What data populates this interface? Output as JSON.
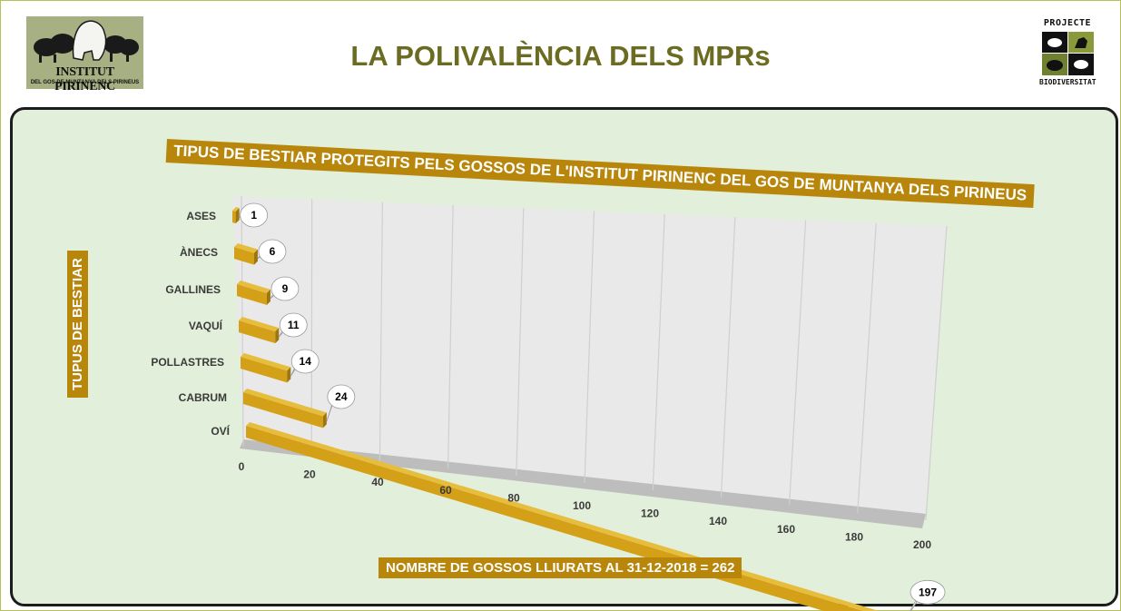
{
  "header": {
    "title": "LA POLIVALÈNCIA DELS MPRs",
    "logo_left": {
      "name": "INSTITUT PIRINENC",
      "tagline": "DEL GOS DE MUNTANYA DELS PIRINEUS"
    },
    "logo_right": {
      "top": "PROJECTE",
      "bottom": "BIODIVERSITAT"
    }
  },
  "colors": {
    "bar": "#d4a017",
    "bar_dark": "#9c7610",
    "banner": "#b8860b",
    "panel": "#e2efda",
    "title": "#6b6b22"
  },
  "chart_data": {
    "type": "bar",
    "orientation": "horizontal",
    "title": "TIPUS DE BESTIAR PROTEGITS PELS GOSSOS DE L'INSTITUT PIRINENC DEL GOS DE MUNTANYA DELS PIRINEUS",
    "xlabel": "NOMBRE DE GOSSOS LLIURATS AL 31-12-2018 = 262",
    "ylabel": "TUPUS DE BESTIAR",
    "categories": [
      "ASES",
      "ÀNECS",
      "GALLINES",
      "VAQUÍ",
      "POLLASTRES",
      "CABRUM",
      "OVÍ"
    ],
    "values": [
      1,
      6,
      9,
      11,
      14,
      24,
      197
    ],
    "xlim": [
      0,
      200
    ],
    "xticks": [
      0,
      20,
      40,
      60,
      80,
      100,
      120,
      140,
      160,
      180,
      200
    ],
    "grid": true,
    "legend": "none"
  }
}
